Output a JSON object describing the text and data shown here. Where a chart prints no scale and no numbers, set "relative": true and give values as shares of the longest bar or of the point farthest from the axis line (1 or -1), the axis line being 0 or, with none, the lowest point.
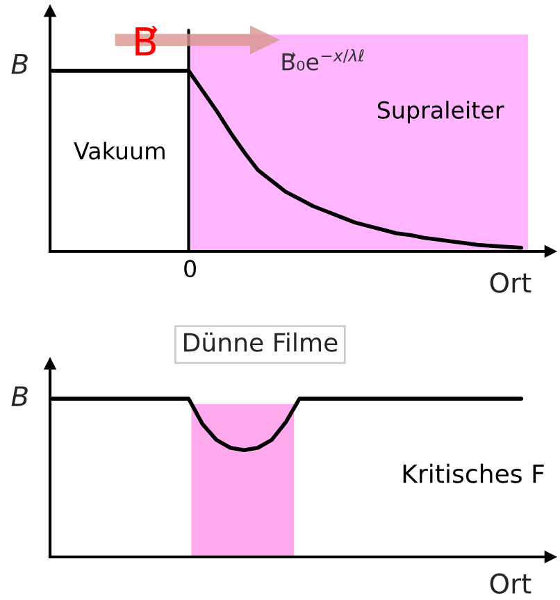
{
  "chart_data": [
    {
      "type": "line",
      "relative": true,
      "ylabel": "B",
      "xlabel": "Ort",
      "categories": [
        null,
        null,
        null,
        null,
        null,
        null,
        null,
        null,
        null,
        null,
        null,
        null,
        null,
        null,
        null,
        null,
        null,
        null,
        null,
        null,
        null,
        null,
        null,
        null,
        null,
        null,
        null,
        null,
        null,
        null,
        null,
        null,
        null,
        null,
        null
      ],
      "series": [
        {
          "color": "#000000",
          "values": [
            1,
            1,
            1,
            1,
            1,
            1,
            1,
            1,
            1,
            1,
            1,
            0.89,
            0.78,
            0.66,
            0.55,
            0.45,
            0.39,
            0.33,
            0.29,
            0.25,
            0.22,
            0.19,
            0.16,
            0.14,
            0.12,
            0.1,
            0.09,
            0.075,
            0.065,
            0.055,
            0.045,
            0.035,
            0.03,
            0.025,
            0.02
          ]
        }
      ],
      "annotations": [
        "Vakuum",
        "Supraleiter",
        "B⃗₀e$^{−x/λℓ}$",
        "B⃗",
        "0"
      ],
      "marker": "none",
      "line_style": "solid"
    },
    {
      "type": "line",
      "relative": true,
      "title": "Dünne Filme",
      "ylabel": "B",
      "xlabel": "Ort",
      "categories": [
        null,
        null,
        null,
        null,
        null,
        null,
        null,
        null,
        null,
        null,
        null,
        null,
        null,
        null,
        null,
        null,
        null,
        null,
        null,
        null,
        null,
        null,
        null,
        null,
        null,
        null,
        null,
        null,
        null,
        null,
        null,
        null,
        null,
        null,
        null
      ],
      "series": [
        {
          "color": "#000000",
          "values": [
            1,
            1,
            1,
            1,
            1,
            1,
            1,
            1,
            1,
            1,
            1,
            0.84,
            0.74,
            0.69,
            0.675,
            0.69,
            0.74,
            0.85,
            1,
            1,
            1,
            1,
            1,
            1,
            1,
            1,
            1,
            1,
            1,
            1,
            1,
            1,
            1,
            1,
            1
          ]
        }
      ],
      "annotations": [
        "Kritisches F"
      ],
      "marker": "none",
      "line_style": "solid"
    }
  ]
}
